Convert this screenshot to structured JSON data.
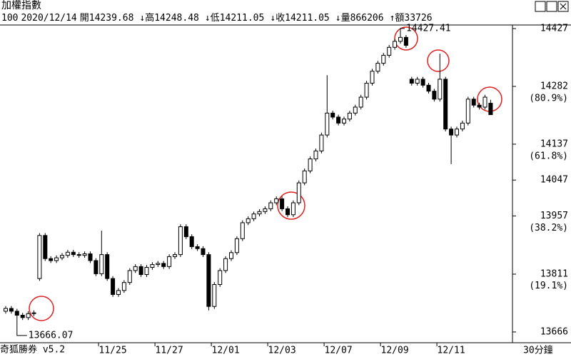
{
  "chart_data": {
    "type": "candlestick",
    "title": "加權指數",
    "info": {
      "code": 100,
      "date": "2020/12/14",
      "items": [
        {
          "label": "開",
          "value": 14239.68
        },
        {
          "label": "↓高",
          "value": 14248.48
        },
        {
          "label": "↓低",
          "value": 14211.05
        },
        {
          "label": "↓收",
          "value": 14211.05
        },
        {
          "label": "↓量",
          "value": 866206
        },
        {
          "label": "↑額",
          "value": "33726"
        }
      ]
    },
    "footer_left": "奇狐勝券 v5.2",
    "period": "30分鐘",
    "categories": [
      null,
      null,
      null,
      null,
      null,
      null,
      null,
      null,
      null,
      null,
      null,
      null,
      null,
      null,
      null,
      null,
      null,
      null,
      null,
      "11/25",
      null,
      null,
      null,
      null,
      null,
      null,
      null,
      null,
      null,
      "11/27",
      null,
      null,
      null,
      null,
      null,
      null,
      null,
      null,
      null,
      "12/01",
      null,
      null,
      null,
      null,
      null,
      null,
      null,
      null,
      null,
      "12/03",
      null,
      null,
      null,
      null,
      null,
      null,
      null,
      null,
      null,
      "12/07",
      null,
      null,
      null,
      null,
      null,
      null,
      null,
      null,
      null,
      "12/09",
      null,
      null,
      null,
      null,
      null,
      null,
      null,
      null,
      null,
      "12/11",
      null,
      null,
      null,
      null,
      null,
      null,
      null
    ],
    "open": [
      13718,
      13725,
      13718,
      13708,
      13702,
      13712,
      13800,
      13908,
      13850,
      13845,
      13852,
      13858,
      13866,
      13860,
      13858,
      13862,
      13845,
      13812,
      13860,
      13800,
      13760,
      13770,
      13790,
      13820,
      13830,
      13810,
      13828,
      13835,
      13838,
      13830,
      13855,
      13860,
      13930,
      13905,
      13880,
      13875,
      13860,
      13730,
      13785,
      13820,
      13850,
      13865,
      13900,
      13940,
      13950,
      13962,
      13968,
      13975,
      13990,
      14000,
      13975,
      13960,
      13990,
      14040,
      14070,
      14100,
      14120,
      14160,
      14215,
      14205,
      14190,
      14200,
      14215,
      14230,
      14255,
      14290,
      14320,
      14340,
      14360,
      14380,
      14395,
      14405,
      14300,
      14290,
      14300,
      14285,
      14270,
      14250,
      14300,
      14175,
      14160,
      14175,
      14190,
      14250,
      14235,
      14230,
      14239.68
    ],
    "high": [
      13731,
      13731,
      13724,
      13714,
      13718,
      13720,
      13914,
      13914,
      13856,
      13858,
      13864,
      13872,
      13872,
      13866,
      13868,
      13868,
      13851,
      13920,
      13866,
      13806,
      13776,
      13796,
      13826,
      13836,
      13836,
      13834,
      13841,
      13844,
      13844,
      13861,
      13866,
      13936,
      13936,
      13911,
      13886,
      13881,
      13866,
      13791,
      13826,
      13856,
      13871,
      13906,
      13946,
      13956,
      13968,
      13974,
      13981,
      13996,
      14006,
      14006,
      13981,
      13996,
      14046,
      14076,
      14106,
      14126,
      14166,
      14310,
      14221,
      14211,
      14206,
      14221,
      14236,
      14261,
      14296,
      14326,
      14346,
      14366,
      14386,
      14401,
      14427.41,
      14411,
      14306,
      14306,
      14306,
      14291,
      14276,
      14364,
      14306,
      14181,
      14181,
      14196,
      14256,
      14256,
      14241,
      14261,
      14248.48
    ],
    "low": [
      13712,
      13712,
      13666.07,
      13696,
      13696,
      13706,
      13794,
      13844,
      13839,
      13839,
      13846,
      13852,
      13854,
      13852,
      13852,
      13839,
      13806,
      13806,
      13794,
      13754,
      13754,
      13764,
      13784,
      13814,
      13804,
      13804,
      13822,
      13829,
      13824,
      13824,
      13849,
      13854,
      13899,
      13874,
      13869,
      13854,
      13720,
      13724,
      13779,
      13814,
      13844,
      13859,
      13894,
      13934,
      13944,
      13956,
      13962,
      13969,
      13984,
      13969,
      13954,
      13954,
      13984,
      14034,
      14064,
      14094,
      14114,
      14154,
      14199,
      14184,
      14184,
      14194,
      14209,
      14224,
      14249,
      14284,
      14314,
      14334,
      14354,
      14374,
      14389,
      14379,
      14284,
      14284,
      14279,
      14264,
      14244,
      14244,
      14169,
      14087,
      14154,
      14169,
      14184,
      14229,
      14224,
      14224,
      14211.05
    ],
    "close": [
      13725,
      13718,
      13708,
      13702,
      13712,
      13714,
      13908,
      13850,
      13845,
      13852,
      13858,
      13866,
      13860,
      13858,
      13862,
      13845,
      13812,
      13860,
      13800,
      13760,
      13770,
      13790,
      13820,
      13830,
      13810,
      13828,
      13835,
      13838,
      13830,
      13855,
      13860,
      13930,
      13905,
      13880,
      13875,
      13860,
      13730,
      13785,
      13820,
      13850,
      13865,
      13900,
      13940,
      13950,
      13962,
      13968,
      13975,
      13990,
      14000,
      13975,
      13960,
      13990,
      14040,
      14070,
      14100,
      14120,
      14160,
      14215,
      14205,
      14190,
      14200,
      14215,
      14230,
      14255,
      14290,
      14320,
      14340,
      14360,
      14380,
      14395,
      14405,
      14385,
      14290,
      14300,
      14285,
      14270,
      14250,
      14300,
      14175,
      14160,
      14175,
      14190,
      14250,
      14235,
      14230,
      14255,
      14211.05
    ],
    "max_label": 14427.41,
    "min_label": 13666.07,
    "ylim": [
      13639,
      14436
    ],
    "yticks": [
      14427,
      14282,
      14137,
      14047,
      13957,
      13811,
      13666
    ],
    "fib_levels": [
      {
        "percent": 80.9,
        "label": "(80.9%)"
      },
      {
        "percent": 61.8,
        "label": "(61.8%)"
      },
      {
        "percent": 38.2,
        "label": "(38.2%)"
      },
      {
        "percent": 19.1,
        "label": "(19.1%)"
      }
    ],
    "up_fill": "#ffffff",
    "down_fill": "#000000",
    "color": "#000000"
  }
}
